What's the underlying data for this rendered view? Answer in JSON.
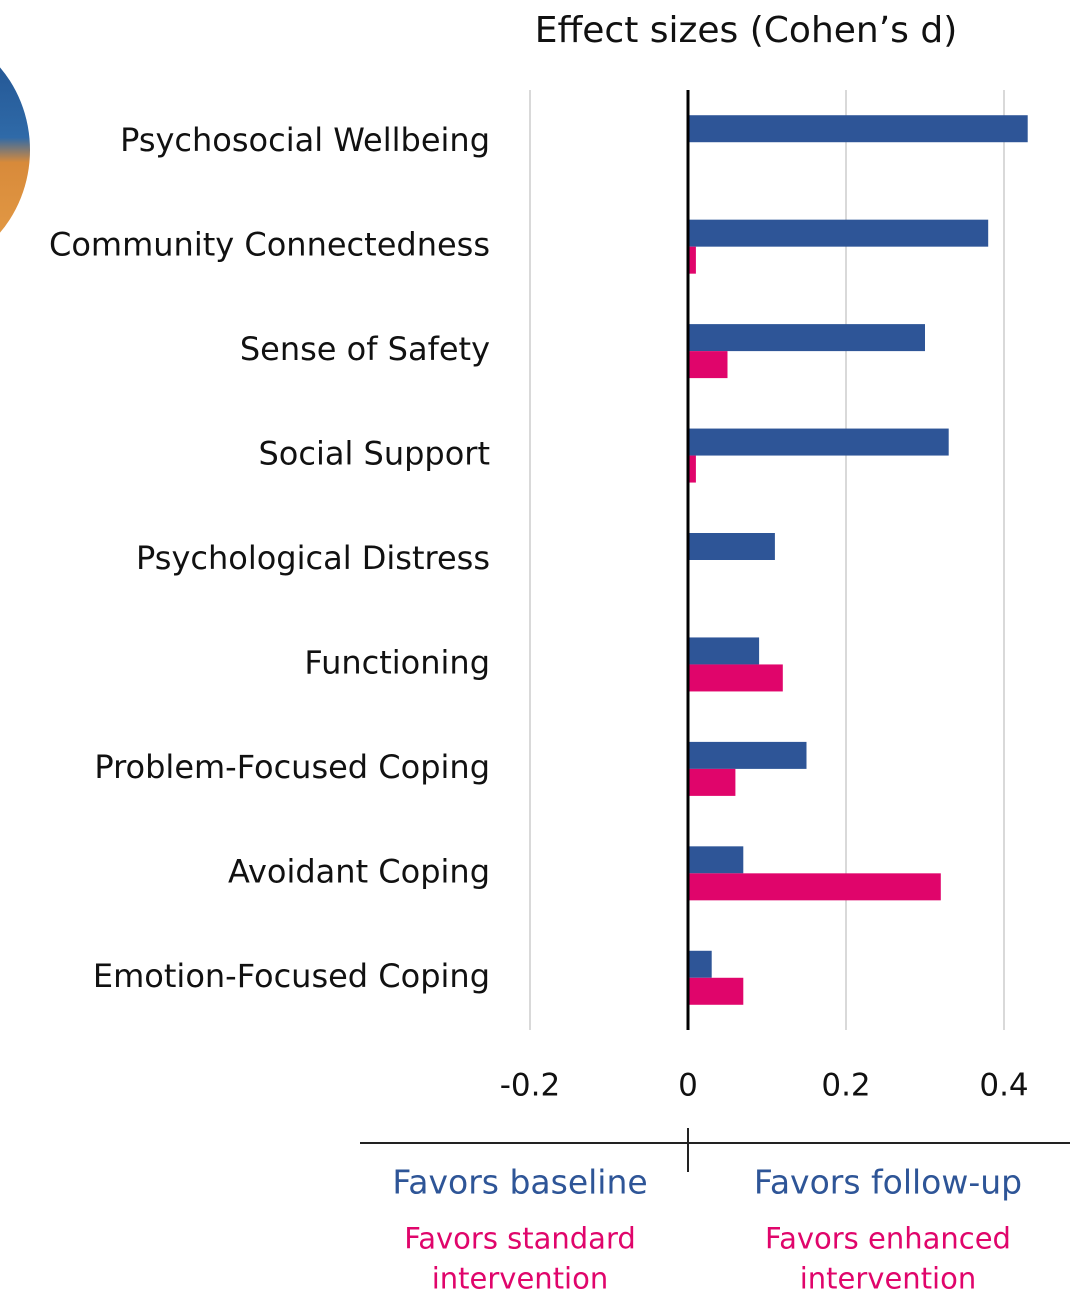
{
  "chart_data": {
    "type": "barh",
    "title": "Effect sizes (Cohen’s d)",
    "categories": [
      "Psychosocial Wellbeing",
      "Community Connectedness",
      "Sense of Safety",
      "Social Support",
      "Psychological Distress",
      "Functioning",
      "Problem-Focused Coping",
      "Avoidant Coping",
      "Emotion-Focused Coping"
    ],
    "series": [
      {
        "color": "#2e5597",
        "values": [
          0.43,
          0.38,
          0.3,
          0.33,
          0.11,
          0.09,
          0.15,
          0.07,
          0.03
        ]
      },
      {
        "color": "#e0056b",
        "values": [
          null,
          0.01,
          0.05,
          0.01,
          null,
          0.12,
          0.06,
          0.32,
          0.07
        ]
      }
    ],
    "xlim": [
      -0.2,
      0.45
    ],
    "xticks": [
      -0.2,
      0,
      0.2,
      0.4
    ],
    "grid": true,
    "annotations": [
      {
        "lines": [
          "Favors baseline"
        ],
        "color": "#2e5597",
        "side": "left"
      },
      {
        "lines": [
          "Favors follow-up"
        ],
        "color": "#2e5597",
        "side": "right"
      },
      {
        "lines": [
          "Favors standard",
          "intervention"
        ],
        "color": "#e0056b",
        "side": "left"
      },
      {
        "lines": [
          "Favors enhanced",
          "intervention"
        ],
        "color": "#e0056b",
        "side": "right"
      }
    ]
  }
}
